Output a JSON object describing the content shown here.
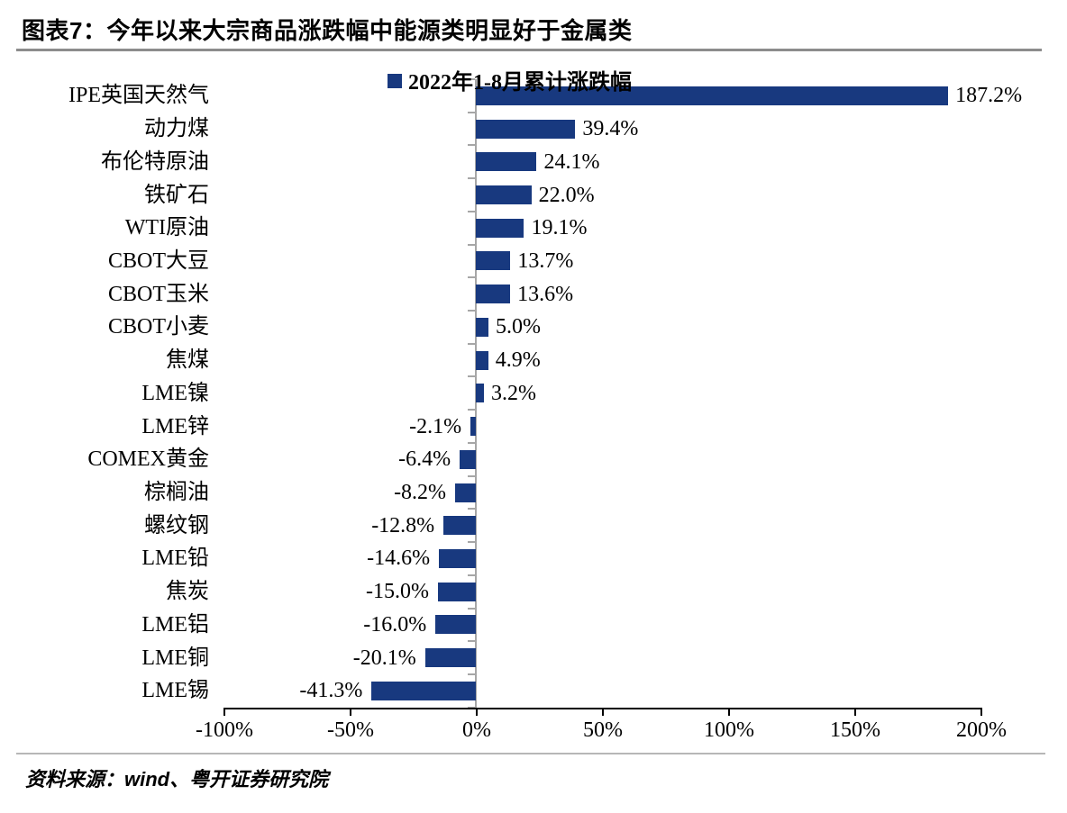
{
  "header": {
    "title": "图表7：今年以来大宗商品涨跌幅中能源类明显好于金属类"
  },
  "chart_data": {
    "type": "bar",
    "orientation": "horizontal",
    "legend": "2022年1-8月累计涨跌幅",
    "legend_position": "top-center",
    "categories": [
      "IPE英国天然气",
      "动力煤",
      "布伦特原油",
      "铁矿石",
      "WTI原油",
      "CBOT大豆",
      "CBOT玉米",
      "CBOT小麦",
      "焦煤",
      "LME镍",
      "LME锌",
      "COMEX黄金",
      "棕榈油",
      "螺纹钢",
      "LME铅",
      "焦炭",
      "LME铝",
      "LME铜",
      "LME锡"
    ],
    "values": [
      187.2,
      39.4,
      24.1,
      22.0,
      19.1,
      13.7,
      13.6,
      5.0,
      4.9,
      3.2,
      -2.1,
      -6.4,
      -8.2,
      -12.8,
      -14.6,
      -15.0,
      -16.0,
      -20.1,
      -41.3
    ],
    "value_labels": [
      "187.2%",
      "39.4%",
      "24.1%",
      "22.0%",
      "19.1%",
      "13.7%",
      "13.6%",
      "5.0%",
      "4.9%",
      "3.2%",
      "-2.1%",
      "-6.4%",
      "-8.2%",
      "-12.8%",
      "-14.6%",
      "-15.0%",
      "-16.0%",
      "-20.1%",
      "-41.3%"
    ],
    "xlabel": "",
    "ylabel": "",
    "xlim": [
      -100,
      200
    ],
    "x_ticks": [
      -100,
      -50,
      0,
      50,
      100,
      150,
      200
    ],
    "x_tick_labels": [
      "-100%",
      "-50%",
      "0%",
      "50%",
      "100%",
      "150%",
      "200%"
    ],
    "grid": false,
    "bar_color": "#18397F"
  },
  "colors": {
    "bar": "#18397F",
    "axis": "#000000",
    "zero_line": "#a6a6a6",
    "title_rule": "#8c8c8c",
    "footer_rule": "#b7b7b7"
  },
  "footer": {
    "source": "资料来源：wind、粤开证券研究院"
  }
}
